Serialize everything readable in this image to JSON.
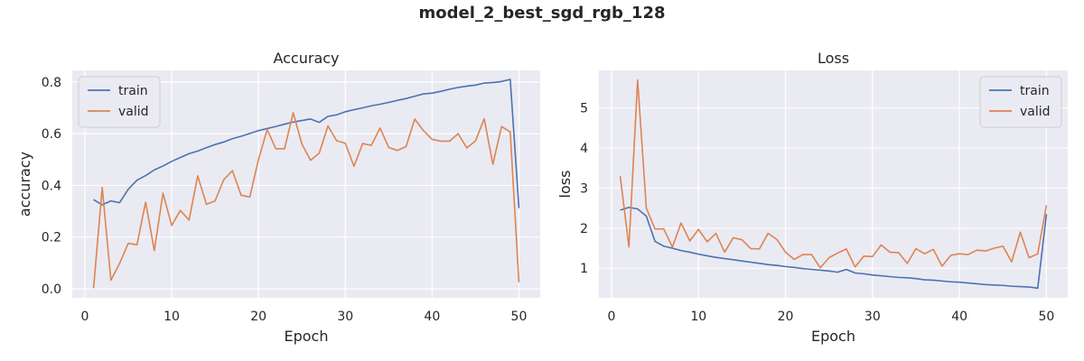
{
  "figure": {
    "title": "model_2_best_sgd_rgb_128"
  },
  "colors": {
    "background": "#eaeaf2",
    "grid": "#ffffff",
    "train": "#4c72b0",
    "valid": "#dd8452",
    "text": "#262626"
  },
  "chart_data": [
    {
      "type": "line",
      "title": "Accuracy",
      "xlabel": "Epoch",
      "ylabel": "accuracy",
      "xlim": [
        -1.45,
        52.45
      ],
      "ylim": [
        -0.035,
        0.845
      ],
      "xticks": [
        0,
        10,
        20,
        30,
        40,
        50
      ],
      "yticks": [
        0.0,
        0.2,
        0.4,
        0.6,
        0.8
      ],
      "ytick_labels": [
        "0.0",
        "0.2",
        "0.4",
        "0.6",
        "0.8"
      ],
      "grid": true,
      "legend": {
        "location": "upper-left"
      },
      "x": [
        1,
        2,
        3,
        4,
        5,
        6,
        7,
        8,
        9,
        10,
        11,
        12,
        13,
        14,
        15,
        16,
        17,
        18,
        19,
        20,
        21,
        22,
        23,
        24,
        25,
        26,
        27,
        28,
        29,
        30,
        31,
        32,
        33,
        34,
        35,
        36,
        37,
        38,
        39,
        40,
        41,
        42,
        43,
        44,
        45,
        46,
        47,
        48,
        49,
        50
      ],
      "series": [
        {
          "name": "train",
          "color": "#4c72b0",
          "values": [
            0.345,
            0.325,
            0.34,
            0.333,
            0.385,
            0.42,
            0.438,
            0.46,
            0.475,
            0.493,
            0.508,
            0.523,
            0.533,
            0.546,
            0.558,
            0.568,
            0.581,
            0.59,
            0.601,
            0.612,
            0.62,
            0.628,
            0.637,
            0.645,
            0.651,
            0.657,
            0.644,
            0.667,
            0.673,
            0.685,
            0.693,
            0.7,
            0.708,
            0.714,
            0.721,
            0.729,
            0.736,
            0.745,
            0.754,
            0.757,
            0.764,
            0.772,
            0.779,
            0.784,
            0.788,
            0.796,
            0.798,
            0.802,
            0.81,
            0.312
          ]
        },
        {
          "name": "valid",
          "color": "#dd8452",
          "values": [
            0.002,
            0.392,
            0.033,
            0.098,
            0.176,
            0.17,
            0.335,
            0.148,
            0.37,
            0.245,
            0.303,
            0.266,
            0.437,
            0.327,
            0.34,
            0.422,
            0.457,
            0.362,
            0.355,
            0.5,
            0.616,
            0.542,
            0.542,
            0.681,
            0.56,
            0.497,
            0.525,
            0.63,
            0.573,
            0.563,
            0.474,
            0.562,
            0.555,
            0.622,
            0.547,
            0.535,
            0.55,
            0.657,
            0.612,
            0.578,
            0.571,
            0.571,
            0.6,
            0.545,
            0.572,
            0.658,
            0.482,
            0.628,
            0.607,
            0.025
          ]
        }
      ]
    },
    {
      "type": "line",
      "title": "Loss",
      "xlabel": "Epoch",
      "ylabel": "loss",
      "xlim": [
        -1.45,
        52.45
      ],
      "ylim": [
        0.26,
        5.94
      ],
      "xticks": [
        0,
        10,
        20,
        30,
        40,
        50
      ],
      "yticks": [
        1,
        2,
        3,
        4,
        5
      ],
      "ytick_labels": [
        "1",
        "2",
        "3",
        "4",
        "5"
      ],
      "grid": true,
      "legend": {
        "location": "upper-right"
      },
      "x": [
        1,
        2,
        3,
        4,
        5,
        6,
        7,
        8,
        9,
        10,
        11,
        12,
        13,
        14,
        15,
        16,
        17,
        18,
        19,
        20,
        21,
        22,
        23,
        24,
        25,
        26,
        27,
        28,
        29,
        30,
        31,
        32,
        33,
        34,
        35,
        36,
        37,
        38,
        39,
        40,
        41,
        42,
        43,
        44,
        45,
        46,
        47,
        48,
        49,
        50
      ],
      "series": [
        {
          "name": "train",
          "color": "#4c72b0",
          "values": [
            2.45,
            2.52,
            2.48,
            2.3,
            1.67,
            1.55,
            1.5,
            1.44,
            1.4,
            1.35,
            1.31,
            1.27,
            1.24,
            1.21,
            1.18,
            1.15,
            1.12,
            1.09,
            1.07,
            1.04,
            1.02,
            0.99,
            0.97,
            0.95,
            0.93,
            0.9,
            0.97,
            0.88,
            0.86,
            0.83,
            0.81,
            0.79,
            0.77,
            0.76,
            0.74,
            0.71,
            0.7,
            0.68,
            0.66,
            0.65,
            0.63,
            0.61,
            0.59,
            0.58,
            0.57,
            0.55,
            0.54,
            0.53,
            0.5,
            2.35
          ]
        },
        {
          "name": "valid",
          "color": "#dd8452",
          "values": [
            3.3,
            1.53,
            5.7,
            2.5,
            1.98,
            1.98,
            1.53,
            2.13,
            1.68,
            1.97,
            1.66,
            1.87,
            1.4,
            1.76,
            1.71,
            1.49,
            1.48,
            1.87,
            1.72,
            1.4,
            1.22,
            1.34,
            1.34,
            1.01,
            1.26,
            1.38,
            1.48,
            1.03,
            1.3,
            1.29,
            1.58,
            1.4,
            1.39,
            1.12,
            1.49,
            1.36,
            1.47,
            1.05,
            1.32,
            1.36,
            1.34,
            1.45,
            1.43,
            1.5,
            1.55,
            1.16,
            1.9,
            1.26,
            1.36,
            2.57
          ]
        }
      ]
    }
  ]
}
